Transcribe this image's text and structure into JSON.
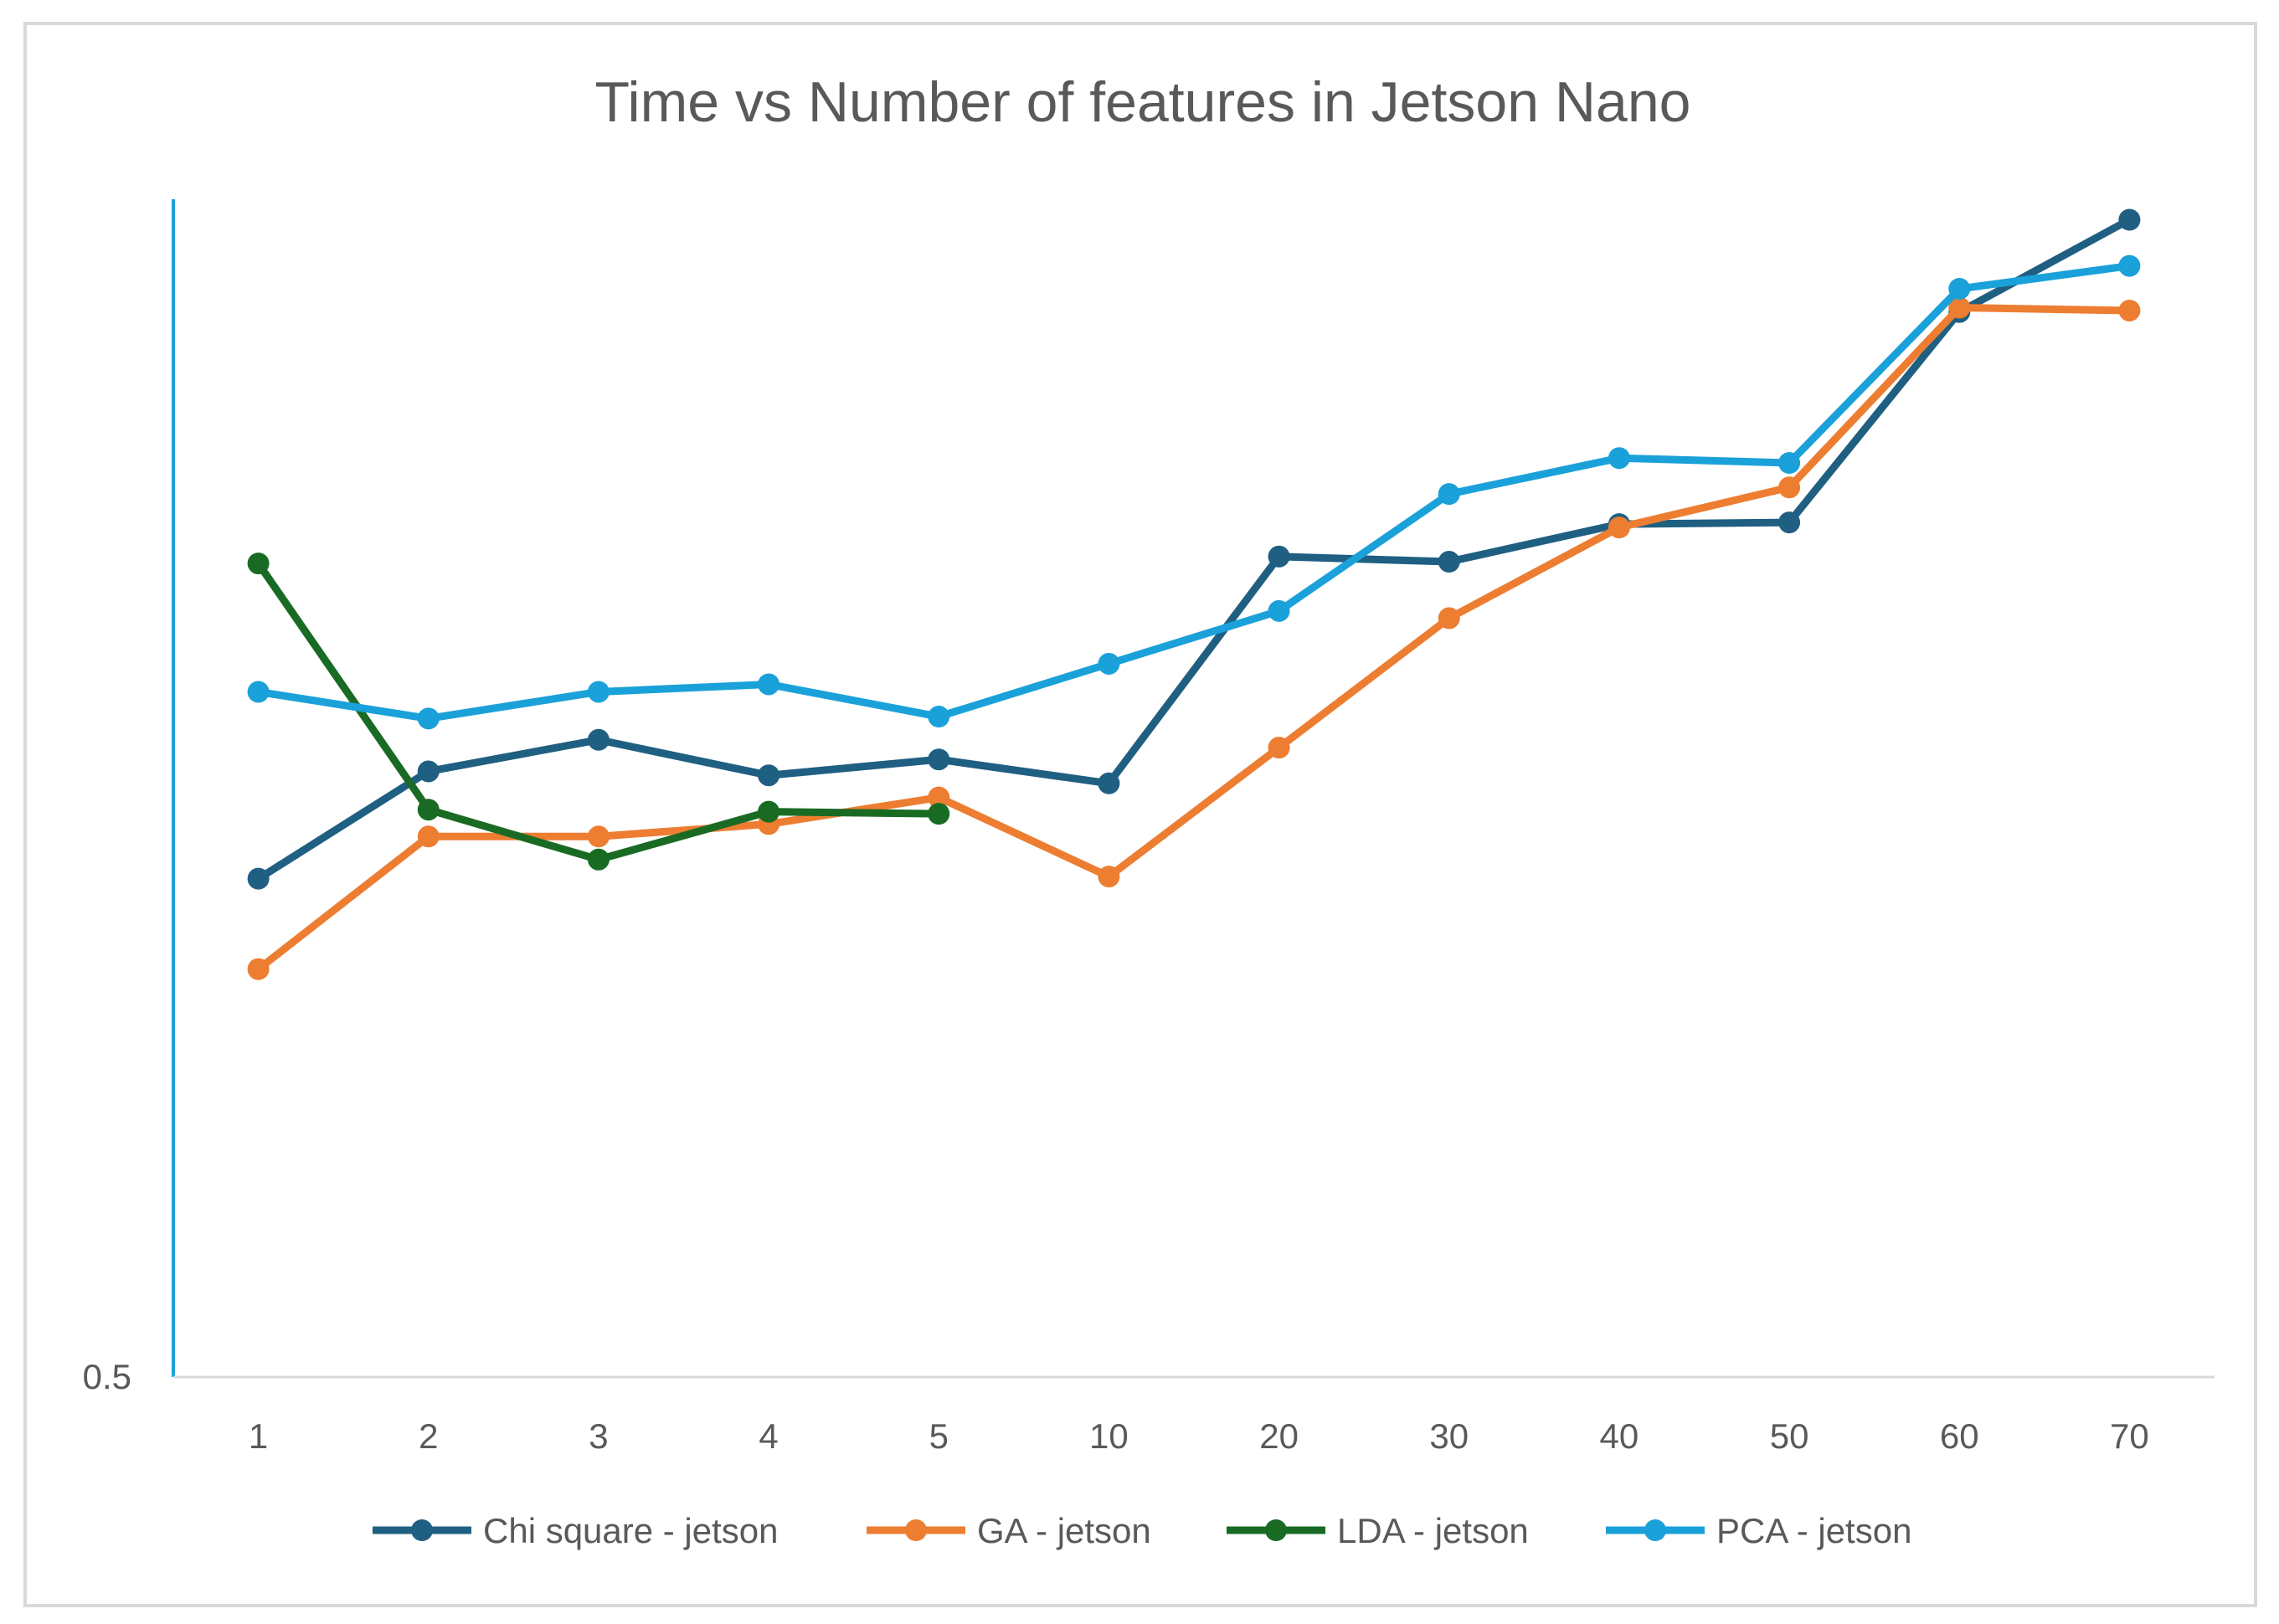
{
  "chart_data": {
    "type": "line",
    "title": "Time vs Number of features in Jetson Nano",
    "xlabel": "",
    "ylabel": "",
    "categories": [
      "1",
      "2",
      "3",
      "4",
      "5",
      "10",
      "20",
      "30",
      "40",
      "50",
      "60",
      "70"
    ],
    "y_scale": "log",
    "y_tick_labels": [
      "0.5"
    ],
    "ylim": [
      0.5,
      1.1
    ],
    "grid": false,
    "legend_position": "bottom",
    "series": [
      {
        "name": "Chi square - jetson",
        "color": "#1F5F82",
        "values": [
          0.698,
          0.75,
          0.766,
          0.748,
          0.756,
          0.744,
          0.866,
          0.863,
          0.885,
          0.886,
          1.02,
          1.085
        ]
      },
      {
        "name": "GA - jetson",
        "color": "#ED7D31",
        "values": [
          0.657,
          0.718,
          0.718,
          0.724,
          0.737,
          0.699,
          0.762,
          0.831,
          0.883,
          0.907,
          1.023,
          1.021
        ]
      },
      {
        "name": "LDA - jetson",
        "color": "#196B24",
        "values": [
          0.862,
          0.731,
          0.707,
          0.73,
          0.729,
          null,
          null,
          null,
          null,
          null,
          null,
          null
        ]
      },
      {
        "name": "PCA - jetson",
        "color": "#1BA1D9",
        "values": [
          0.791,
          0.777,
          0.791,
          0.795,
          0.778,
          0.806,
          0.835,
          0.903,
          0.925,
          0.922,
          1.036,
          1.052
        ]
      }
    ]
  }
}
